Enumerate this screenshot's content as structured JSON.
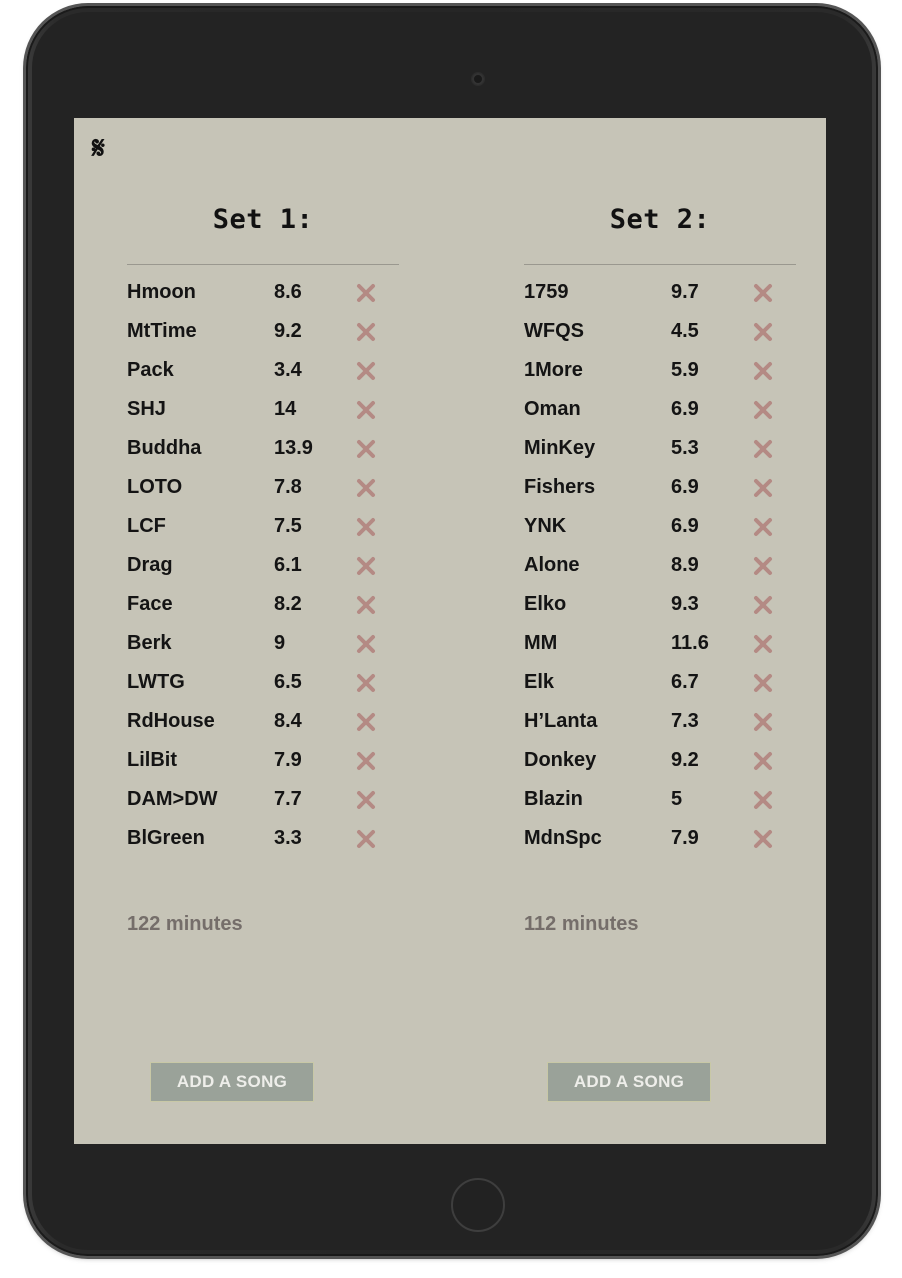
{
  "app": {
    "logo_glyph": "𝄋",
    "remove_icon_color": "#b48a84"
  },
  "sets": [
    {
      "title": "Set 1:",
      "songs": [
        {
          "name": "Hmoon",
          "length": "8.6"
        },
        {
          "name": "MtTime",
          "length": "9.2"
        },
        {
          "name": "Pack",
          "length": "3.4"
        },
        {
          "name": "SHJ",
          "length": "14"
        },
        {
          "name": "Buddha",
          "length": "13.9"
        },
        {
          "name": "LOTO",
          "length": "7.8"
        },
        {
          "name": "LCF",
          "length": "7.5"
        },
        {
          "name": "Drag",
          "length": "6.1"
        },
        {
          "name": "Face",
          "length": "8.2"
        },
        {
          "name": "Berk",
          "length": "9"
        },
        {
          "name": "LWTG",
          "length": "6.5"
        },
        {
          "name": "RdHouse",
          "length": "8.4"
        },
        {
          "name": "LilBit",
          "length": "7.9"
        },
        {
          "name": "DAM>DW",
          "length": "7.7"
        },
        {
          "name": "BlGreen",
          "length": "3.3"
        }
      ],
      "total": "122 minutes",
      "add_label": "ADD A SONG"
    },
    {
      "title": "Set 2:",
      "songs": [
        {
          "name": "1759",
          "length": "9.7"
        },
        {
          "name": "WFQS",
          "length": "4.5"
        },
        {
          "name": "1More",
          "length": "5.9"
        },
        {
          "name": "Oman",
          "length": "6.9"
        },
        {
          "name": "MinKey",
          "length": "5.3"
        },
        {
          "name": "Fishers",
          "length": "6.9"
        },
        {
          "name": "YNK",
          "length": "6.9"
        },
        {
          "name": "Alone",
          "length": "8.9"
        },
        {
          "name": "Elko",
          "length": "9.3"
        },
        {
          "name": "MM",
          "length": "11.6"
        },
        {
          "name": "Elk",
          "length": "6.7"
        },
        {
          "name": "H’Lanta",
          "length": "7.3"
        },
        {
          "name": "Donkey",
          "length": "9.2"
        },
        {
          "name": "Blazin",
          "length": "5"
        },
        {
          "name": "MdnSpc",
          "length": "7.9"
        }
      ],
      "total": "112 minutes",
      "add_label": "ADD A SONG"
    }
  ]
}
